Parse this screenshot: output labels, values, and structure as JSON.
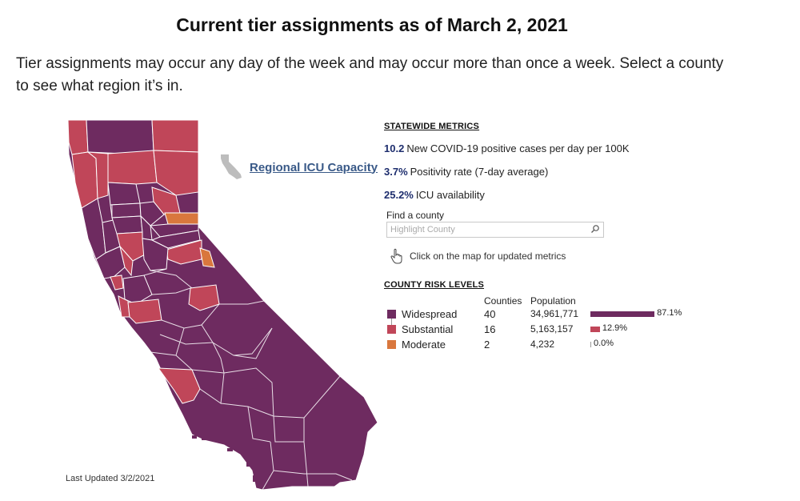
{
  "title": "Current tier assignments as of March 2, 2021",
  "intro": "Tier assignments may occur any day of the week and may occur more than once a week. Select a county to see what region it’s in.",
  "icu_link": {
    "label": "Regional ICU Capacity",
    "icon": "california-outline-icon"
  },
  "last_updated": "Last Updated 3/2/2021",
  "colors": {
    "widespread": "#6e2b60",
    "substantial": "#c04659",
    "moderate": "#d9773d",
    "metric_value": "#1e2e6e",
    "link": "#3a5a88"
  },
  "statewide": {
    "heading": "STATEWIDE METRICS",
    "metrics": [
      {
        "value": "10.2",
        "label": "New COVID-19 positive cases per day per 100K"
      },
      {
        "value": "3.7%",
        "label": "Positivity rate (7-day average)"
      },
      {
        "value": "25.2%",
        "label": "ICU availability"
      }
    ]
  },
  "find_county": {
    "label": "Find a county",
    "placeholder": "Highlight County",
    "icon": "search-icon"
  },
  "click_hint": {
    "text": "Click on the map for updated metrics",
    "icon": "pointer-hand-icon"
  },
  "risk_levels": {
    "heading": "COUNTY RISK LEVELS",
    "col_counties": "Counties",
    "col_population": "Population",
    "rows": [
      {
        "name": "Widespread",
        "counties": "40",
        "population": "34,961,771",
        "share": 87.1,
        "percent_label": "87.1%",
        "color": "#6e2b60"
      },
      {
        "name": "Substantial",
        "counties": "16",
        "population": "5,163,157",
        "share": 12.9,
        "percent_label": "12.9%",
        "color": "#c04659"
      },
      {
        "name": "Moderate",
        "counties": "2",
        "population": "4,232",
        "share": 0.0,
        "percent_label": "0.0%",
        "color": "#d9773d"
      }
    ]
  }
}
